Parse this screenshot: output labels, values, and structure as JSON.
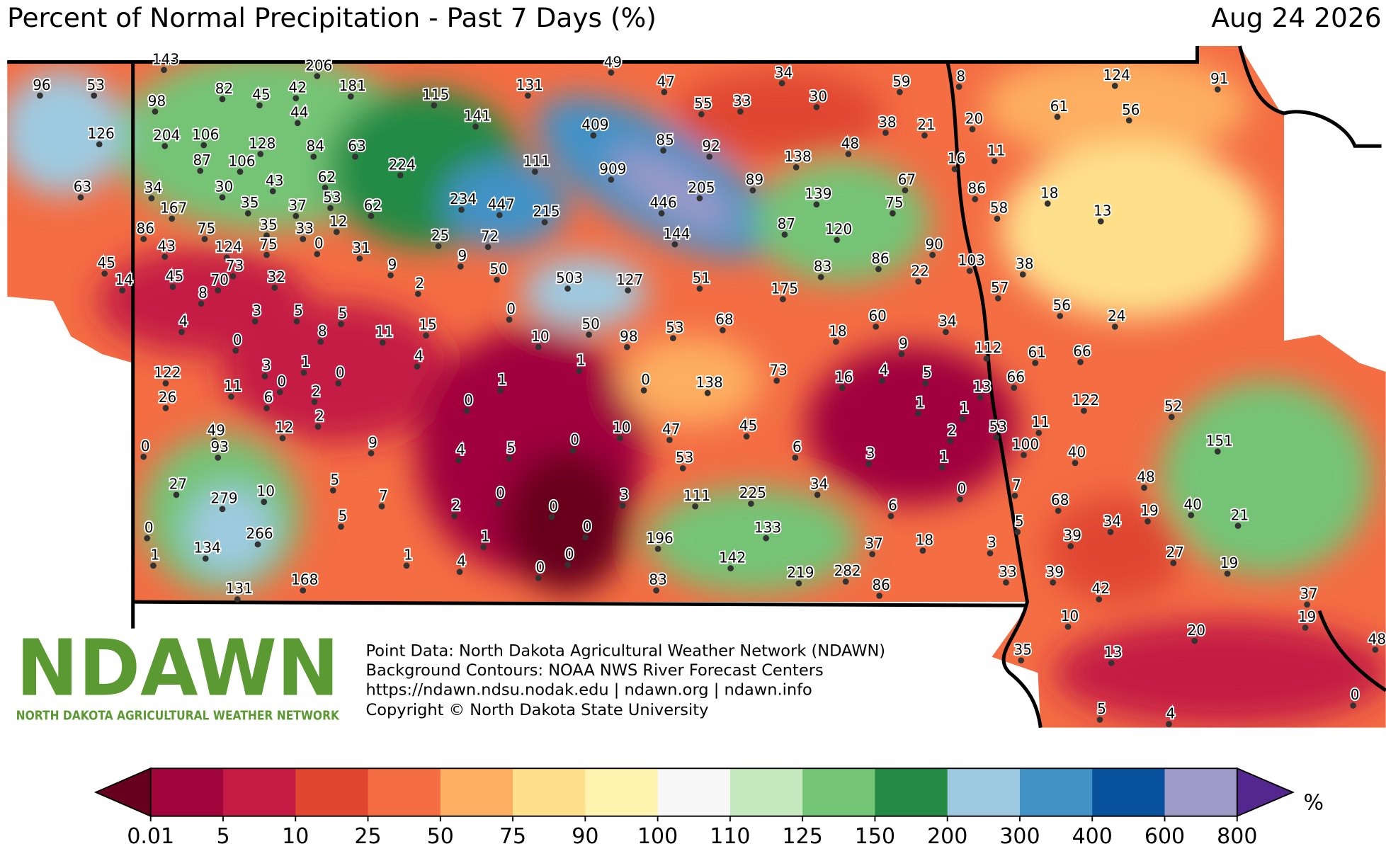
{
  "header": {
    "title": "Percent of Normal Precipitation - Past 7 Days (%)",
    "date": "Aug 24 2026"
  },
  "stations": [
    96,
    53,
    143,
    206,
    98,
    82,
    45,
    42,
    181,
    115,
    131,
    49,
    47,
    34,
    59,
    8,
    124,
    91,
    126,
    204,
    106,
    44,
    141,
    409,
    55,
    33,
    30,
    20,
    61,
    56,
    38,
    21,
    128,
    84,
    63,
    87,
    106,
    111,
    85,
    92,
    48,
    138,
    16,
    11,
    224,
    909,
    63,
    34,
    30,
    43,
    62,
    205,
    89,
    139,
    67,
    86,
    18,
    53,
    35,
    37,
    62,
    234,
    447,
    215,
    446,
    75,
    58,
    13,
    167,
    86,
    75,
    35,
    33,
    12,
    144,
    87,
    120,
    90,
    43,
    124,
    75,
    0,
    31,
    25,
    72,
    9,
    103,
    38,
    86,
    45,
    73,
    9,
    50,
    22,
    83,
    14,
    45,
    70,
    32,
    2,
    503,
    127,
    51,
    175,
    57,
    8,
    3,
    5,
    5,
    0,
    56,
    24,
    4,
    60,
    34,
    68,
    50,
    53,
    8,
    11,
    15,
    18,
    0,
    10,
    98,
    9,
    112,
    61,
    66,
    122,
    3,
    1,
    0,
    4,
    1,
    73,
    4,
    5,
    16,
    66,
    11,
    0,
    1,
    0,
    138,
    13,
    26,
    6,
    2,
    0,
    122,
    52,
    1,
    1,
    2,
    12,
    49,
    10,
    47,
    45,
    53,
    11,
    2,
    0,
    93,
    9,
    4,
    5,
    0,
    100,
    151,
    6,
    3,
    1,
    40,
    53,
    27,
    5,
    34,
    225,
    0,
    7,
    48,
    279,
    10,
    7,
    0,
    3,
    111,
    68,
    6,
    2,
    0,
    0,
    5,
    0,
    133,
    34,
    19,
    40,
    21,
    266,
    1,
    196,
    5,
    39,
    37,
    18,
    3,
    1,
    134,
    1,
    4,
    0,
    142,
    27,
    19,
    0,
    219,
    282,
    33,
    39,
    131,
    168,
    83,
    86,
    42,
    37,
    10,
    19,
    20,
    48,
    35,
    13,
    0,
    5,
    4
  ],
  "logo": {
    "text": "NDAWN",
    "subtitle": "NORTH DAKOTA AGRICULTURAL WEATHER NETWORK"
  },
  "credits": [
    "Point Data: North Dakota Agricultural Weather Network (NDAWN)",
    "Background Contours: NOAA NWS River Forecast Centers",
    "https://ndawn.ndsu.nodak.edu | ndawn.org | ndawn.info",
    "Copyright © North Dakota State University"
  ],
  "legend": {
    "levels": [
      0.01,
      5,
      10,
      25,
      50,
      75,
      90,
      100,
      110,
      125,
      150,
      200,
      300,
      400,
      600,
      800
    ],
    "colors": [
      "#a0063c",
      "#c41a44",
      "#e04630",
      "#f46d43",
      "#fdae61",
      "#fee08b",
      "#fff3b0",
      "#f7f7f7",
      "#c7e9c0",
      "#74c476",
      "#238b45",
      "#9ecae1",
      "#4292c6",
      "#08519c",
      "#9e9ac8"
    ],
    "under_color": "#67001f",
    "over_color": "#54278f",
    "unit": "%"
  }
}
